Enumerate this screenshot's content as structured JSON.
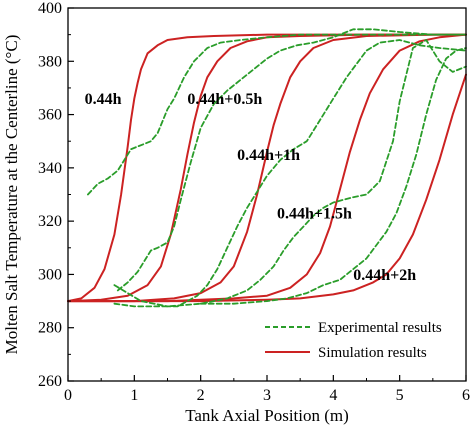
{
  "chart_data": {
    "type": "line",
    "xlabel": "Tank Axial Position (m)",
    "ylabel": "Molten Salt Temperature at the Centerline (°C)",
    "xlim": [
      0,
      6
    ],
    "ylim": [
      260,
      400
    ],
    "xticks": [
      0,
      1,
      2,
      3,
      4,
      5,
      6
    ],
    "yticks": [
      260,
      280,
      300,
      320,
      340,
      360,
      380,
      400
    ],
    "legend": {
      "placement": "bottom-right",
      "entries": [
        {
          "label": "Experimental results",
          "style": "dashed",
          "color": "#2a9d2a"
        },
        {
          "label": "Simulation results",
          "style": "solid",
          "color": "#cc2222"
        }
      ]
    },
    "annotations": [
      {
        "text": "0.44h",
        "x": 0.25,
        "y": 364
      },
      {
        "text": "0.44h+0.5h",
        "x": 1.8,
        "y": 364
      },
      {
        "text": "0.44h+1h",
        "x": 2.55,
        "y": 343
      },
      {
        "text": "0.44h+1.5h",
        "x": 3.15,
        "y": 321
      },
      {
        "text": "0.44h+2h",
        "x": 4.3,
        "y": 298
      }
    ],
    "series": [
      {
        "kind": "simulation",
        "color": "#cc2222",
        "x": [
          0,
          0.2,
          0.4,
          0.55,
          0.7,
          0.8,
          0.9,
          0.95,
          1.0,
          1.05,
          1.1,
          1.2,
          1.35,
          1.5,
          1.8,
          2.2,
          3.0,
          4.0,
          5.0,
          6.0
        ],
        "y": [
          290,
          291,
          295,
          302,
          315,
          330,
          348,
          358,
          366,
          372,
          377,
          383,
          386,
          388,
          389,
          389.5,
          390,
          390,
          390,
          390
        ]
      },
      {
        "kind": "simulation",
        "color": "#cc2222",
        "x": [
          0,
          0.5,
          0.9,
          1.2,
          1.4,
          1.55,
          1.7,
          1.8,
          1.9,
          2.0,
          2.1,
          2.25,
          2.45,
          2.7,
          3.0,
          3.5,
          4.5,
          6.0
        ],
        "y": [
          290,
          290.5,
          292,
          296,
          303,
          315,
          332,
          345,
          357,
          367,
          374,
          380,
          385,
          387.5,
          389,
          389.5,
          390,
          390
        ]
      },
      {
        "kind": "simulation",
        "color": "#cc2222",
        "x": [
          0,
          1.0,
          1.6,
          2.0,
          2.3,
          2.5,
          2.7,
          2.85,
          3.0,
          3.1,
          3.2,
          3.35,
          3.5,
          3.7,
          4.0,
          4.5,
          5.5,
          6.0
        ],
        "y": [
          290,
          290,
          291,
          293,
          297,
          303,
          316,
          330,
          346,
          356,
          364,
          374,
          380,
          385,
          388,
          389.5,
          390,
          390
        ]
      },
      {
        "kind": "simulation",
        "color": "#cc2222",
        "x": [
          0,
          1.5,
          2.5,
          3.0,
          3.35,
          3.6,
          3.8,
          3.95,
          4.1,
          4.25,
          4.4,
          4.55,
          4.75,
          5.0,
          5.3,
          5.6,
          6.0
        ],
        "y": [
          290,
          290,
          291,
          292,
          295,
          300,
          308,
          318,
          332,
          346,
          358,
          368,
          377,
          384,
          387.5,
          389,
          390
        ]
      },
      {
        "kind": "simulation",
        "color": "#cc2222",
        "x": [
          0,
          2.0,
          3.0,
          3.5,
          4.0,
          4.3,
          4.6,
          4.8,
          5.0,
          5.2,
          5.4,
          5.6,
          5.8,
          6.0
        ],
        "y": [
          290,
          290,
          290.5,
          291,
          292.5,
          294,
          297,
          300,
          306,
          315,
          328,
          343,
          360,
          375
        ]
      },
      {
        "kind": "experimental",
        "color": "#2a9d2a",
        "x": [
          0.3,
          0.45,
          0.6,
          0.75,
          0.85,
          0.95,
          1.05,
          1.15,
          1.25,
          1.35,
          1.5,
          1.6,
          1.75,
          1.9,
          2.1,
          2.3,
          2.6,
          3.0,
          3.5,
          4.0,
          5.0,
          6.0
        ],
        "y": [
          330,
          334,
          336,
          339,
          343,
          347,
          348,
          349,
          350,
          353,
          362,
          366,
          374,
          380,
          385,
          387,
          388,
          389,
          390,
          390,
          390,
          390
        ]
      },
      {
        "kind": "experimental",
        "color": "#2a9d2a",
        "x": [
          0.75,
          0.9,
          1.05,
          1.15,
          1.25,
          1.35,
          1.5,
          1.6,
          1.7,
          1.85,
          2.0,
          2.2,
          2.4,
          2.6,
          2.8,
          3.0,
          3.2,
          3.45,
          3.7,
          4.0,
          4.3,
          4.6,
          5.0,
          5.5,
          6.0
        ],
        "y": [
          294,
          297,
          301,
          305,
          309,
          310,
          312,
          318,
          328,
          342,
          355,
          364,
          369,
          373,
          377,
          381,
          384,
          386,
          387,
          389,
          392,
          392,
          391,
          390,
          390
        ]
      },
      {
        "kind": "experimental",
        "color": "#2a9d2a",
        "x": [
          0.7,
          0.9,
          1.1,
          1.3,
          1.5,
          1.65,
          1.8,
          1.95,
          2.1,
          2.25,
          2.4,
          2.55,
          2.7,
          2.85,
          3.0,
          3.2,
          3.4,
          3.6,
          3.8,
          4.0,
          4.2,
          4.5,
          4.7,
          5.0,
          5.3,
          5.6,
          6.0
        ],
        "y": [
          296,
          293,
          290,
          289,
          288,
          288,
          290,
          292,
          296,
          302,
          310,
          318,
          325,
          331,
          337,
          343,
          347,
          350,
          358,
          366,
          374,
          384,
          387,
          388,
          386,
          385,
          384
        ]
      },
      {
        "kind": "experimental",
        "color": "#2a9d2a",
        "x": [
          0.7,
          1.0,
          1.5,
          2.0,
          2.4,
          2.7,
          2.9,
          3.1,
          3.25,
          3.4,
          3.55,
          3.7,
          3.85,
          4.0,
          4.15,
          4.3,
          4.5,
          4.7,
          4.9,
          5.0,
          5.1,
          5.2,
          5.4,
          5.6,
          5.8,
          6.0
        ],
        "y": [
          289,
          288,
          288,
          289,
          291,
          294,
          298,
          303,
          309,
          314,
          318,
          322,
          325,
          327,
          328,
          329,
          330,
          335,
          350,
          365,
          375,
          385,
          388,
          380,
          376,
          378
        ]
      },
      {
        "kind": "experimental",
        "color": "#2a9d2a",
        "x": [
          2.0,
          2.5,
          3.0,
          3.3,
          3.6,
          3.85,
          4.1,
          4.3,
          4.5,
          4.65,
          4.8,
          4.95,
          5.1,
          5.25,
          5.4,
          5.55,
          5.7,
          5.85,
          6.0
        ],
        "y": [
          289,
          289,
          290,
          291,
          293,
          296,
          298,
          302,
          306,
          311,
          316,
          323,
          333,
          345,
          360,
          373,
          381,
          384,
          385
        ]
      }
    ]
  }
}
